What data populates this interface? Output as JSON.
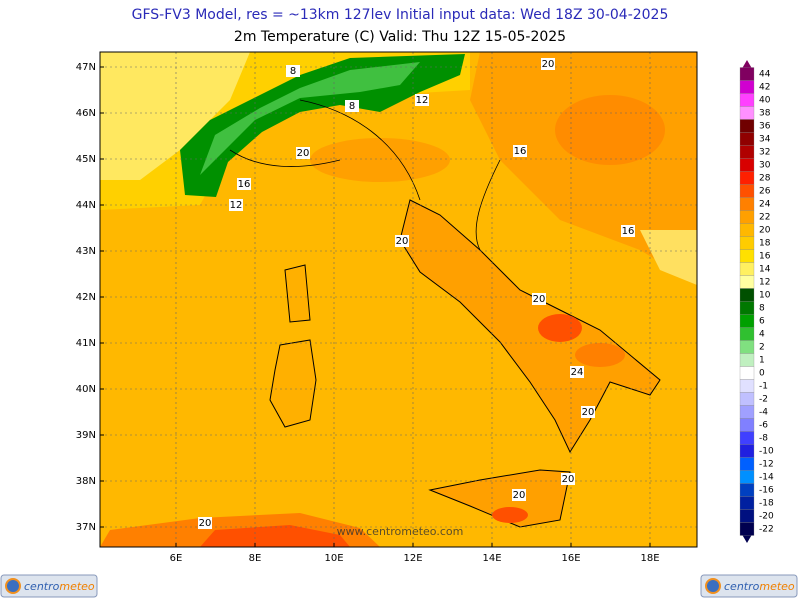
{
  "header": {
    "title": "GFS-FV3 Model, res = ~13km 127lev   Initial input data: Wed 18Z 30-04-2025",
    "subtitle": "2m Temperature (C)  Valid: Thu 12Z 15-05-2025"
  },
  "map": {
    "lat_labels": [
      "47N",
      "46N",
      "45N",
      "44N",
      "43N",
      "42N",
      "41N",
      "40N",
      "39N",
      "38N",
      "37N"
    ],
    "lon_labels": [
      "6E",
      "8E",
      "10E",
      "12E",
      "14E",
      "16E",
      "18E"
    ],
    "contour_labels": [
      "8",
      "8",
      "12",
      "20",
      "16",
      "12",
      "16",
      "20",
      "16",
      "20",
      "20",
      "24",
      "20",
      "20",
      "20",
      "20"
    ],
    "watermark": "www.centrometeo.com"
  },
  "colorbar": {
    "levels": [
      "44",
      "42",
      "40",
      "38",
      "36",
      "34",
      "32",
      "30",
      "28",
      "26",
      "24",
      "22",
      "20",
      "18",
      "16",
      "14",
      "12",
      "10",
      "8",
      "6",
      "4",
      "2",
      "1",
      "0",
      "-1",
      "-2",
      "-4",
      "-6",
      "-8",
      "-10",
      "-12",
      "-14",
      "-16",
      "-18",
      "-20",
      "-22"
    ],
    "colors": [
      "#800060",
      "#d000d0",
      "#ff40ff",
      "#ff90ff",
      "#700000",
      "#900000",
      "#b00000",
      "#d80000",
      "#ff2000",
      "#ff5000",
      "#ff8000",
      "#ffa000",
      "#ffb800",
      "#ffcc00",
      "#ffe000",
      "#fff060",
      "#ffffa0",
      "#005000",
      "#007800",
      "#00a000",
      "#30c030",
      "#80e080",
      "#c0f0c0",
      "#ffffff",
      "#e0e0ff",
      "#c0c0ff",
      "#a0a0ff",
      "#8080ff",
      "#4040ff",
      "#2020e0",
      "#0060ff",
      "#0090ff",
      "#0040c0",
      "#0020a0",
      "#001080",
      "#000050"
    ]
  },
  "logo": {
    "part1": "centro",
    "part2": "meteo"
  }
}
